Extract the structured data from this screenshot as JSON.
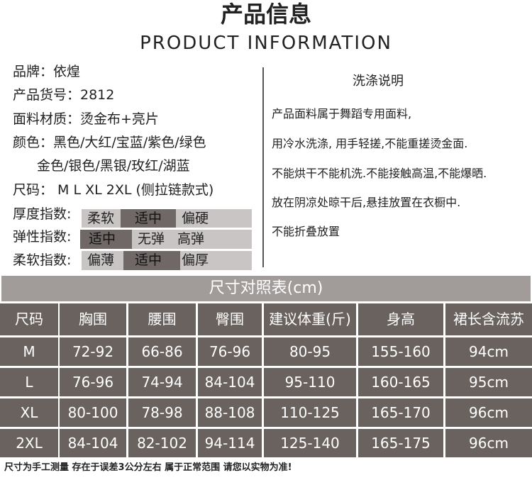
{
  "header": {
    "title": "产品信息",
    "subtitle": "PRODUCT INFORMATION"
  },
  "info": [
    "品牌：依煌",
    "产品货号：2812",
    "面料材质：烫金布+亮片",
    "颜色：黑色/大红/宝蓝/紫色/绿色",
    "金色/银色/黑银/玫红/湖蓝",
    "尺码： M  L  XL 2XL (侧拉链款式)"
  ],
  "indices": [
    {
      "label": "厚度指数:",
      "options": [
        "柔软",
        "适中",
        "偏硬"
      ],
      "selected": "适中"
    },
    {
      "label": "弹性指数:",
      "options": [
        "适中",
        "无弹",
        "高弹"
      ],
      "selected": "适中"
    },
    {
      "label": "柔软指数:",
      "options": [
        "偏薄",
        "适中",
        "偏厚"
      ],
      "selected": "适中"
    }
  ],
  "wash": {
    "title": "洗涤说明",
    "lines": [
      "产品面料属于舞蹈专用面料,",
      "用冷水洗涤, 用手轻搓,不能重搓烫金面.",
      "不能烘干不能机洗.不能接触高温,不能爆晒.",
      "放在阴凉处晾干后,悬挂放置在衣橱中.",
      "不能折叠放置"
    ]
  },
  "size_chart": {
    "title": "尺寸对照表(cm)",
    "headers": [
      "尺码",
      "胸围",
      "腰围",
      "臀围",
      "建议体重(斤)",
      "身高",
      "裙长含流苏"
    ],
    "rows": [
      [
        "M",
        "72-92",
        "66-86",
        "76-96",
        "80-95",
        "155-160",
        "94cm"
      ],
      [
        "L",
        "76-96",
        "74-94",
        "84-104",
        "95-110",
        "160-165",
        "95cm"
      ],
      [
        "XL",
        "80-100",
        "78-98",
        "88-108",
        "110-125",
        "165-170",
        "96cm"
      ],
      [
        "2XL",
        "84-104",
        "82-102",
        "94-114",
        "125-140",
        "165-175",
        "96cm"
      ]
    ]
  },
  "footer": "尺寸为手工测量 存在于误差3公分左右  属于正常范围  请您以实物为准!",
  "colors": {
    "table_cell": "#69625f",
    "title_bar": "#a19b9a",
    "index_light": "#c9c5c5",
    "index_dark": "#6f6867"
  }
}
